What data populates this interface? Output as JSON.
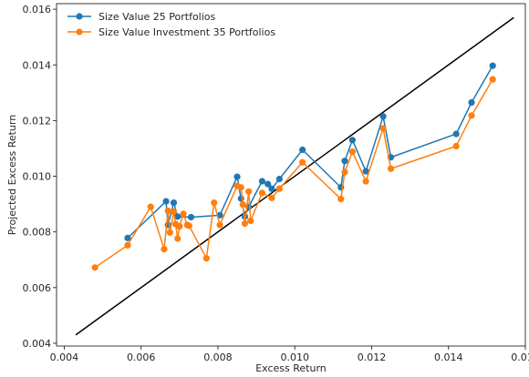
{
  "chart_data": {
    "type": "line",
    "title": "",
    "xlabel": "Excess Return",
    "ylabel": "Projected Excess Return",
    "xlim": [
      0.0038,
      0.016
    ],
    "ylim": [
      0.0039,
      0.0162
    ],
    "xticks": [
      "0.004",
      "0.006",
      "0.008",
      "0.010",
      "0.012",
      "0.014",
      "0.016"
    ],
    "yticks": [
      "0.004",
      "0.006",
      "0.008",
      "0.010",
      "0.012",
      "0.014",
      "0.016"
    ],
    "grid": false,
    "legend_position": "upper-left",
    "series": [
      {
        "name": "Size Value 25 Portfolios",
        "color": "#1f77b4",
        "marker": "circle",
        "points": [
          [
            0.00565,
            0.00778
          ],
          [
            0.00665,
            0.0091
          ],
          [
            0.0067,
            0.00825
          ],
          [
            0.00685,
            0.00905
          ],
          [
            0.00695,
            0.00855
          ],
          [
            0.0073,
            0.00853
          ],
          [
            0.00805,
            0.0086
          ],
          [
            0.0085,
            0.00998
          ],
          [
            0.0086,
            0.0092
          ],
          [
            0.0087,
            0.00855
          ],
          [
            0.0088,
            0.0089
          ],
          [
            0.00915,
            0.00982
          ],
          [
            0.0093,
            0.00972
          ],
          [
            0.0094,
            0.00955
          ],
          [
            0.0096,
            0.0099
          ],
          [
            0.0102,
            0.01095
          ],
          [
            0.0112,
            0.0096
          ],
          [
            0.0113,
            0.01055
          ],
          [
            0.0115,
            0.0113
          ],
          [
            0.01185,
            0.01018
          ],
          [
            0.0123,
            0.01215
          ],
          [
            0.0125,
            0.01068
          ],
          [
            0.0142,
            0.01152
          ],
          [
            0.0146,
            0.01265
          ],
          [
            0.01515,
            0.01397
          ]
        ]
      },
      {
        "name": "Size Value Investment 35 Portfolios",
        "color": "#ff7f0e",
        "marker": "circle",
        "points": [
          [
            0.0048,
            0.00672
          ],
          [
            0.00565,
            0.00752
          ],
          [
            0.00625,
            0.0089
          ],
          [
            0.0066,
            0.00738
          ],
          [
            0.0067,
            0.00876
          ],
          [
            0.00675,
            0.00798
          ],
          [
            0.00685,
            0.00873
          ],
          [
            0.0069,
            0.00828
          ],
          [
            0.00695,
            0.00776
          ],
          [
            0.007,
            0.0082
          ],
          [
            0.0071,
            0.00865
          ],
          [
            0.0072,
            0.00825
          ],
          [
            0.00725,
            0.00822
          ],
          [
            0.0077,
            0.00705
          ],
          [
            0.0079,
            0.00905
          ],
          [
            0.00805,
            0.00825
          ],
          [
            0.0085,
            0.00965
          ],
          [
            0.0086,
            0.0096
          ],
          [
            0.00865,
            0.00898
          ],
          [
            0.0087,
            0.0083
          ],
          [
            0.0088,
            0.00945
          ],
          [
            0.00885,
            0.0084
          ],
          [
            0.00915,
            0.0094
          ],
          [
            0.0094,
            0.00922
          ],
          [
            0.0096,
            0.00955
          ],
          [
            0.0102,
            0.0105
          ],
          [
            0.0112,
            0.00918
          ],
          [
            0.0113,
            0.01015
          ],
          [
            0.0115,
            0.01088
          ],
          [
            0.01185,
            0.00982
          ],
          [
            0.0123,
            0.01172
          ],
          [
            0.0125,
            0.01027
          ],
          [
            0.0142,
            0.01108
          ],
          [
            0.0146,
            0.01218
          ],
          [
            0.01515,
            0.01348
          ]
        ]
      }
    ],
    "reference_line": {
      "color": "#000000",
      "points": [
        [
          0.0043,
          0.0043
        ],
        [
          0.0157,
          0.0157
        ]
      ]
    }
  }
}
